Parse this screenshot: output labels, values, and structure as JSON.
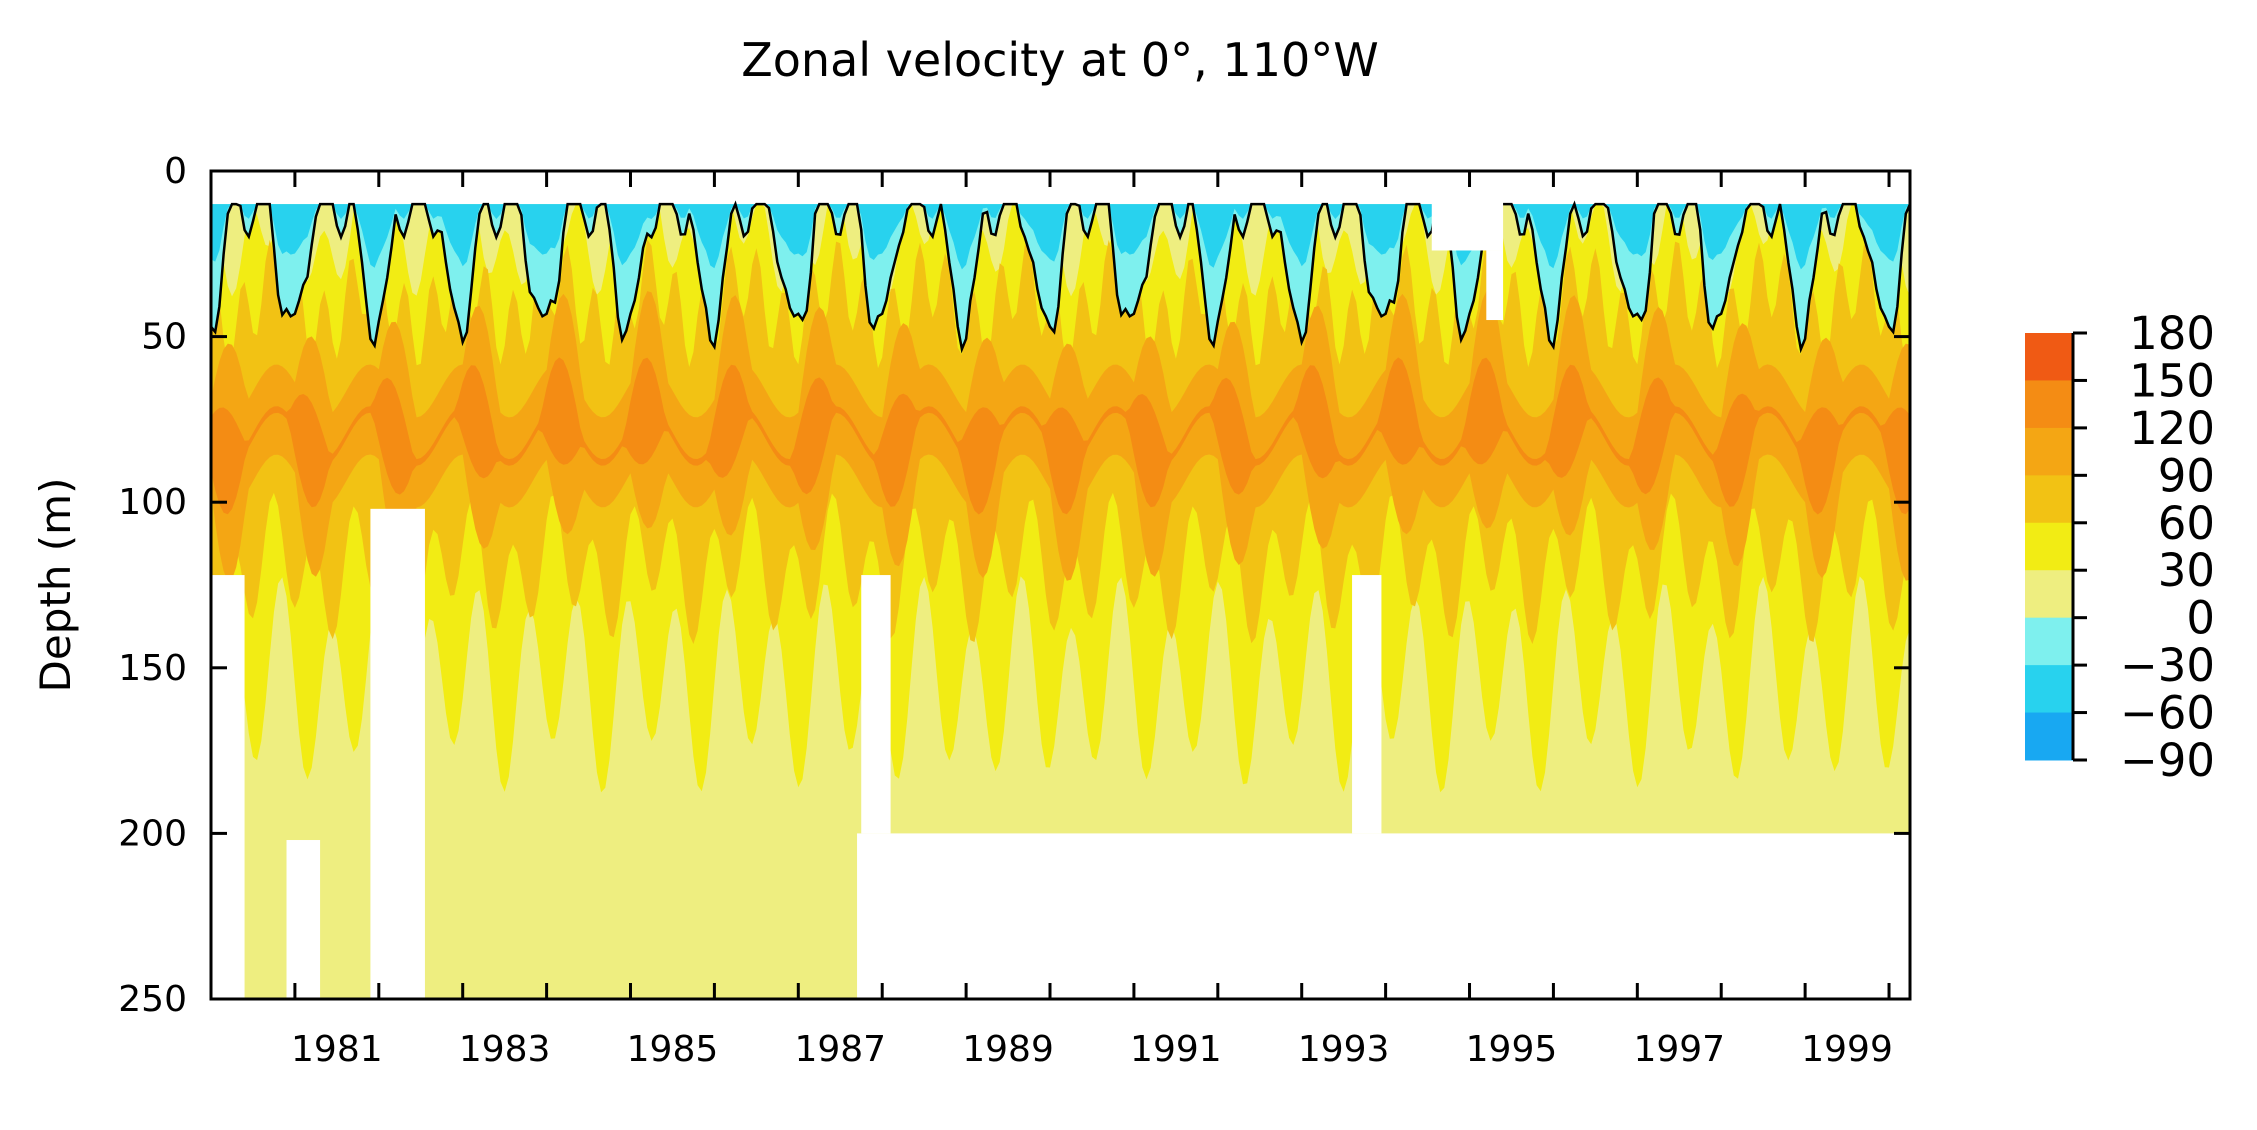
{
  "chart_data": {
    "type": "heatmap",
    "title": "Zonal velocity at 0°, 110°W",
    "xlabel": "",
    "ylabel": "Depth (m)",
    "x_tick_labels": [
      "1981",
      "1983",
      "1985",
      "1987",
      "1989",
      "1991",
      "1993",
      "1995",
      "1997",
      "1999"
    ],
    "x_tick_years": [
      1981,
      1983,
      1985,
      1987,
      1989,
      1991,
      1993,
      1995,
      1997,
      1999
    ],
    "xlim": [
      1980.0,
      2000.25
    ],
    "y_tick_labels": [
      "0",
      "50",
      "100",
      "150",
      "200",
      "250"
    ],
    "y_tick_values": [
      0,
      50,
      100,
      150,
      200,
      250
    ],
    "ylim": [
      250,
      0
    ],
    "grid": false,
    "colorbar": {
      "placement": "right",
      "tick_labels": [
        "180",
        "150",
        "120",
        "90",
        "60",
        "30",
        "0",
        "−30",
        "−60",
        "−90"
      ],
      "levels": [
        180,
        150,
        120,
        90,
        60,
        30,
        0,
        -30,
        -60,
        -90
      ],
      "bins": [
        {
          "range": [
            150,
            180
          ],
          "color": "#F05A14"
        },
        {
          "range": [
            120,
            150
          ],
          "color": "#F48C14"
        },
        {
          "range": [
            90,
            120
          ],
          "color": "#F4A614"
        },
        {
          "range": [
            60,
            90
          ],
          "color": "#F2C214"
        },
        {
          "range": [
            30,
            60
          ],
          "color": "#F2EC14"
        },
        {
          "range": [
            0,
            30
          ],
          "color": "#EEEE80"
        },
        {
          "range": [
            -30,
            0
          ],
          "color": "#7EF0EE"
        },
        {
          "range": [
            -60,
            -30
          ],
          "color": "#28D2EE"
        },
        {
          "range": [
            -90,
            -60
          ],
          "color": "#18A8F2"
        }
      ]
    },
    "zero_contour_color": "#000000",
    "data_gaps": [
      {
        "years": [
          1980.0,
          1980.4
        ],
        "depth": [
          122,
          250
        ]
      },
      {
        "years": [
          1980.9,
          1981.3
        ],
        "depth": [
          202,
          250
        ]
      },
      {
        "years": [
          1981.9,
          1982.55
        ],
        "depth": [
          102,
          250
        ]
      },
      {
        "years": [
          1987.75,
          1988.1
        ],
        "depth": [
          122,
          200
        ]
      },
      {
        "years": [
          1993.6,
          1993.95
        ],
        "depth": [
          122,
          200
        ]
      },
      {
        "years": [
          1994.55,
          1995.4
        ],
        "depth": [
          0,
          24
        ]
      },
      {
        "years": [
          1995.2,
          1995.4
        ],
        "depth": [
          24,
          45
        ]
      },
      {
        "years": [
          1987.7,
          2000.25
        ],
        "depth": [
          200,
          250
        ]
      }
    ]
  }
}
